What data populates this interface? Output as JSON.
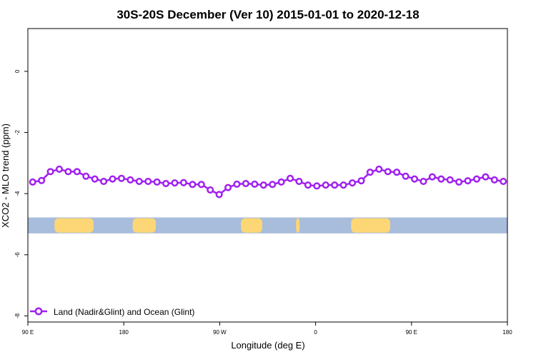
{
  "chart_data": {
    "type": "line",
    "title": "30S-20S December (Ver 10)   2015-01-01 to 2020-12-18",
    "xlabel": "Longitude (deg E)",
    "ylabel": "XCO2 - MLO trend (ppm)",
    "xlim": [
      -90,
      180
    ],
    "ylim": [
      -8.2,
      1.4
    ],
    "x_ticks": [
      {
        "value": -90,
        "label": "90 E"
      },
      {
        "value": -36,
        "label": "180"
      },
      {
        "value": 18,
        "label": "90 W"
      },
      {
        "value": 72,
        "label": "0"
      },
      {
        "value": 126,
        "label": "90 E"
      },
      {
        "value": 180,
        "label": "180"
      }
    ],
    "y_ticks": [
      0,
      -2,
      -4,
      -6,
      -8
    ],
    "grid": false,
    "legend_position": "bottom-left",
    "series": [
      {
        "name": "Land (Nadir&Glint) and Ocean (Glint)",
        "color": "#a020f0",
        "x": [
          -87.3,
          -82.3,
          -77.3,
          -72.3,
          -67.3,
          -62.3,
          -57.3,
          -52.3,
          -47.3,
          -42.3,
          -37.3,
          -32.3,
          -27.3,
          -22.3,
          -17.3,
          -12.3,
          -7.3,
          -2.3,
          2.7,
          7.7,
          12.7,
          17.7,
          22.7,
          27.7,
          32.7,
          37.7,
          42.7,
          47.7,
          52.7,
          57.7,
          62.7,
          67.7,
          72.7,
          77.7,
          82.7,
          87.7,
          92.7,
          97.7,
          102.7,
          107.7,
          112.7,
          117.7,
          122.7,
          127.7,
          132.7,
          137.7,
          142.7,
          147.7,
          152.7,
          157.7,
          162.7,
          167.7,
          172.7,
          177.7
        ],
        "values": [
          -3.62,
          -3.57,
          -3.28,
          -3.2,
          -3.28,
          -3.28,
          -3.43,
          -3.52,
          -3.6,
          -3.52,
          -3.5,
          -3.55,
          -3.6,
          -3.6,
          -3.62,
          -3.67,
          -3.65,
          -3.64,
          -3.7,
          -3.7,
          -3.88,
          -4.03,
          -3.8,
          -3.69,
          -3.67,
          -3.69,
          -3.72,
          -3.7,
          -3.62,
          -3.5,
          -3.6,
          -3.72,
          -3.75,
          -3.72,
          -3.72,
          -3.72,
          -3.65,
          -3.58,
          -3.3,
          -3.2,
          -3.28,
          -3.3,
          -3.43,
          -3.52,
          -3.6,
          -3.45,
          -3.52,
          -3.55,
          -3.62,
          -3.58,
          -3.52,
          -3.45,
          -3.55,
          -3.6
        ]
      }
    ],
    "surface_band": {
      "y_range": [
        -4.78,
        -5.3
      ],
      "ocean_color": "#a8bcdb",
      "land_color": "#fdd775",
      "land_spans": [
        [
          -75,
          -53
        ],
        [
          -31,
          -18
        ],
        [
          30,
          42
        ],
        [
          61,
          63
        ],
        [
          92,
          114
        ],
        [
          -59,
          -58
        ]
      ]
    }
  }
}
